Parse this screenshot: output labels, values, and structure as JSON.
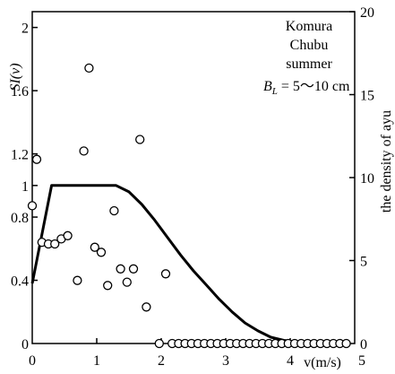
{
  "chart_data": {
    "type": "scatter",
    "title": "",
    "xlabel": "v(m/s)",
    "ylabel_left": "SI(v)",
    "ylabel_right": "the density of ayu",
    "xlim": [
      0,
      5
    ],
    "ylim_left": [
      0,
      2.1
    ],
    "ylim_right": [
      0,
      20
    ],
    "x_ticks": [
      {
        "value": 0,
        "label": "0"
      },
      {
        "value": 1,
        "label": "1"
      },
      {
        "value": 2,
        "label": "2"
      },
      {
        "value": 3,
        "label": "3"
      },
      {
        "value": 4,
        "label": "4"
      },
      {
        "value": 5,
        "label": "5"
      }
    ],
    "y_left_ticks": [
      {
        "value": 0,
        "label": "0"
      },
      {
        "value": 0.4,
        "label": "0.4"
      },
      {
        "value": 0.8,
        "label": "0.8"
      },
      {
        "value": 1.0,
        "label": "1"
      },
      {
        "value": 1.2,
        "label": "1.2"
      },
      {
        "value": 1.6,
        "label": "1.6"
      },
      {
        "value": 2.0,
        "label": "2"
      }
    ],
    "y_right_ticks": [
      {
        "value": 0,
        "label": "0"
      },
      {
        "value": 5,
        "label": "5"
      },
      {
        "value": 10,
        "label": "10"
      },
      {
        "value": 15,
        "label": "15"
      },
      {
        "value": 20,
        "label": "20"
      }
    ],
    "annotation_lines": [
      "Komura",
      "Chubu",
      "summer"
    ],
    "annotation_formula": {
      "symbol": "B",
      "subscript": "L",
      "value": " = 5～10 cm"
    },
    "grid": false,
    "series": [
      {
        "type": "line",
        "axis": "left",
        "x": [
          0,
          0.3,
          1.3,
          1.5,
          1.7,
          1.9,
          2.1,
          2.3,
          2.5,
          2.7,
          2.9,
          3.1,
          3.3,
          3.5,
          3.7,
          3.9,
          4.1,
          4.3,
          4.5
        ],
        "y": [
          0.38,
          1.0,
          1.0,
          0.96,
          0.88,
          0.78,
          0.67,
          0.56,
          0.46,
          0.37,
          0.28,
          0.2,
          0.13,
          0.08,
          0.04,
          0.02,
          0.01,
          0.0,
          0.0
        ]
      },
      {
        "type": "scatter",
        "axis": "right",
        "x": [
          0,
          0.07,
          0.15,
          0.25,
          0.35,
          0.45,
          0.55,
          0.7,
          0.8,
          0.88,
          0.97,
          1.07,
          1.17,
          1.27,
          1.37,
          1.47,
          1.57,
          1.67,
          1.77,
          1.97,
          2.07,
          2.17,
          2.27,
          2.37,
          2.47,
          2.57,
          2.67,
          2.77,
          2.87,
          2.97,
          3.07,
          3.17,
          3.27,
          3.37,
          3.47,
          3.57,
          3.67,
          3.77,
          3.87,
          3.97,
          4.07,
          4.17,
          4.27,
          4.37,
          4.47,
          4.57,
          4.67,
          4.77,
          4.87
        ],
        "y": [
          8.3,
          11.1,
          6.1,
          6.0,
          6.0,
          6.3,
          6.5,
          3.8,
          11.6,
          16.6,
          5.8,
          5.5,
          3.5,
          8.0,
          4.5,
          3.7,
          4.5,
          12.3,
          2.2,
          0,
          4.2,
          0,
          0,
          0,
          0,
          0,
          0,
          0,
          0,
          0,
          0,
          0,
          0,
          0,
          0,
          0,
          0,
          0,
          0,
          0,
          0,
          0,
          0,
          0,
          0,
          0,
          0,
          0,
          0
        ]
      }
    ]
  }
}
